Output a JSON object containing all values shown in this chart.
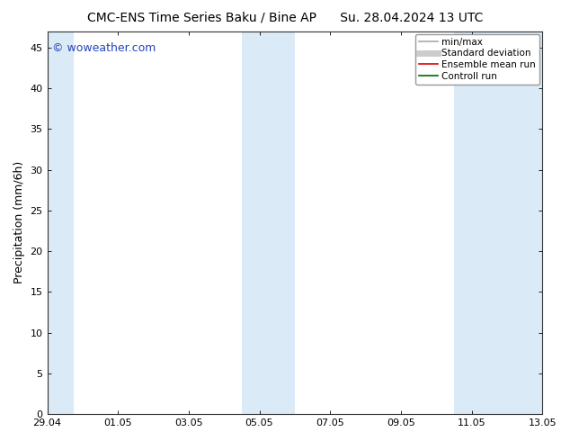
{
  "title_left": "CMC-ENS Time Series Baku / Bine AP",
  "title_right": "Su. 28.04.2024 13 UTC",
  "ylabel": "Precipitation (mm/6h)",
  "watermark": "© woweather.com",
  "xlim_start": 0,
  "xlim_end": 336,
  "ylim": [
    0,
    47
  ],
  "yticks": [
    0,
    5,
    10,
    15,
    20,
    25,
    30,
    35,
    40,
    45
  ],
  "xtick_labels": [
    "29.04",
    "01.05",
    "03.05",
    "05.05",
    "07.05",
    "09.05",
    "11.05",
    "13.05"
  ],
  "xtick_positions": [
    0,
    48,
    96,
    144,
    192,
    240,
    288,
    336
  ],
  "background_color": "#ffffff",
  "plot_bg_color": "#ffffff",
  "shaded_color": "#daeaf6",
  "shaded_regions": [
    {
      "start": 0,
      "end": 18
    },
    {
      "start": 132,
      "end": 156
    },
    {
      "start": 156,
      "end": 168
    },
    {
      "start": 276,
      "end": 300
    },
    {
      "start": 300,
      "end": 336
    }
  ],
  "legend_items": [
    {
      "label": "min/max",
      "color": "#aaaaaa",
      "lw": 1.2
    },
    {
      "label": "Standard deviation",
      "color": "#cccccc",
      "lw": 5
    },
    {
      "label": "Ensemble mean run",
      "color": "#dd0000",
      "lw": 1.2
    },
    {
      "label": "Controll run",
      "color": "#006600",
      "lw": 1.2
    }
  ],
  "watermark_color": "#2244bb",
  "title_fontsize": 10,
  "ylabel_fontsize": 9,
  "tick_fontsize": 8,
  "legend_fontsize": 7.5,
  "watermark_fontsize": 9
}
